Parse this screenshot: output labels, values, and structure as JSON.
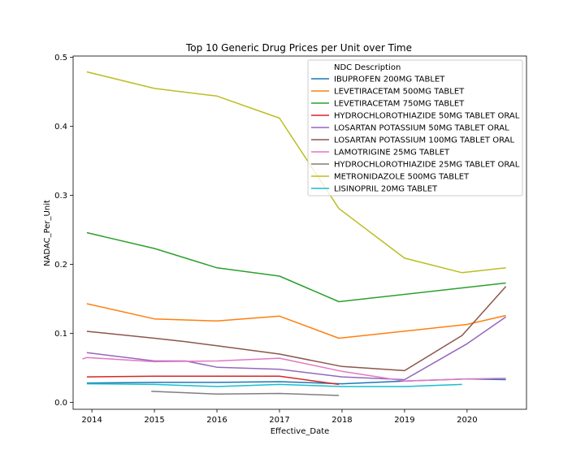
{
  "chart_data": {
    "type": "line",
    "title": "Top 10 Generic Drug Prices per Unit over Time",
    "xlabel": "Effective_Date",
    "ylabel": "NADAC_Per_Unit",
    "xlim": [
      2013.7,
      2020.95
    ],
    "ylim": [
      -0.01,
      0.502
    ],
    "x_ticks": [
      2014,
      2015,
      2016,
      2017,
      2018,
      2019,
      2020
    ],
    "x_tick_labels": [
      "2014",
      "2015",
      "2016",
      "2017",
      "2018",
      "2019",
      "2020"
    ],
    "y_ticks": [
      0.0,
      0.1,
      0.2,
      0.3,
      0.4,
      0.5
    ],
    "y_tick_labels": [
      "0.0",
      "0.1",
      "0.2",
      "0.3",
      "0.4",
      "0.5"
    ],
    "grid": false,
    "legend": {
      "title": "NDC Description",
      "placement": "top-right"
    },
    "series": [
      {
        "name": "IBUPROFEN 200MG TABLET",
        "color": "#1f77b4",
        "x": [
          2013.92,
          2015.0,
          2016.0,
          2017.0,
          2018.0,
          2019.0,
          2020.0,
          2020.62
        ],
        "y": [
          0.028,
          0.029,
          0.029,
          0.03,
          0.027,
          0.031,
          0.034,
          0.033
        ]
      },
      {
        "name": "LEVETIRACETAM 500MG TABLET",
        "color": "#ff7f0e",
        "x": [
          2013.92,
          2015.0,
          2016.0,
          2017.0,
          2017.95,
          2020.0,
          2020.62
        ],
        "y": [
          0.143,
          0.121,
          0.118,
          0.125,
          0.093,
          0.113,
          0.126
        ]
      },
      {
        "name": "LEVETIRACETAM 750MG TABLET",
        "color": "#2ca02c",
        "x": [
          2013.92,
          2015.0,
          2016.0,
          2017.0,
          2017.95,
          2020.62
        ],
        "y": [
          0.246,
          0.223,
          0.195,
          0.183,
          0.146,
          0.173
        ]
      },
      {
        "name": "HYDROCHLOROTHIAZIDE 50MG TABLET ORAL",
        "color": "#d62728",
        "x": [
          2013.92,
          2015.0,
          2016.0,
          2017.0,
          2017.95
        ],
        "y": [
          0.037,
          0.038,
          0.038,
          0.038,
          0.026
        ]
      },
      {
        "name": "LOSARTAN POTASSIUM 50MG TABLET ORAL",
        "color": "#9467bd",
        "x": [
          2013.92,
          2015.0,
          2015.5,
          2016.0,
          2017.0,
          2018.0,
          2019.0,
          2020.0,
          2020.62
        ],
        "y": [
          0.072,
          0.06,
          0.06,
          0.051,
          0.048,
          0.037,
          0.033,
          0.085,
          0.124
        ]
      },
      {
        "name": "LOSARTAN POTASSIUM 100MG TABLET ORAL",
        "color": "#8c564b",
        "x": [
          2013.92,
          2015.0,
          2015.5,
          2016.0,
          2017.0,
          2018.0,
          2019.0,
          2019.92,
          2020.62
        ],
        "y": [
          0.103,
          0.093,
          0.088,
          0.082,
          0.07,
          0.052,
          0.046,
          0.097,
          0.168
        ]
      },
      {
        "name": "LAMOTRIGINE 25MG TABLET",
        "color": "#e377c2",
        "x": [
          2013.85,
          2013.92,
          2015.0,
          2016.0,
          2017.0,
          2018.0,
          2019.0,
          2020.0,
          2020.62
        ],
        "y": [
          0.063,
          0.065,
          0.059,
          0.06,
          0.064,
          0.045,
          0.031,
          0.034,
          0.035
        ]
      },
      {
        "name": "HYDROCHLOROTHIAZIDE 25MG TABLET ORAL",
        "color": "#7f7f7f",
        "x": [
          2014.95,
          2016.0,
          2017.0,
          2017.95
        ],
        "y": [
          0.016,
          0.012,
          0.013,
          0.01
        ]
      },
      {
        "name": "METRONIDAZOLE 500MG TABLET",
        "color": "#bcbd22",
        "x": [
          2013.92,
          2015.0,
          2016.0,
          2017.0,
          2017.95,
          2019.0,
          2019.92,
          2020.62
        ],
        "y": [
          0.479,
          0.455,
          0.444,
          0.412,
          0.281,
          0.209,
          0.188,
          0.195
        ]
      },
      {
        "name": "LISINOPRIL 20MG TABLET",
        "color": "#17becf",
        "x": [
          2013.92,
          2015.0,
          2016.0,
          2017.0,
          2018.0,
          2019.0,
          2019.92
        ],
        "y": [
          0.027,
          0.026,
          0.023,
          0.026,
          0.023,
          0.023,
          0.026
        ]
      }
    ]
  }
}
